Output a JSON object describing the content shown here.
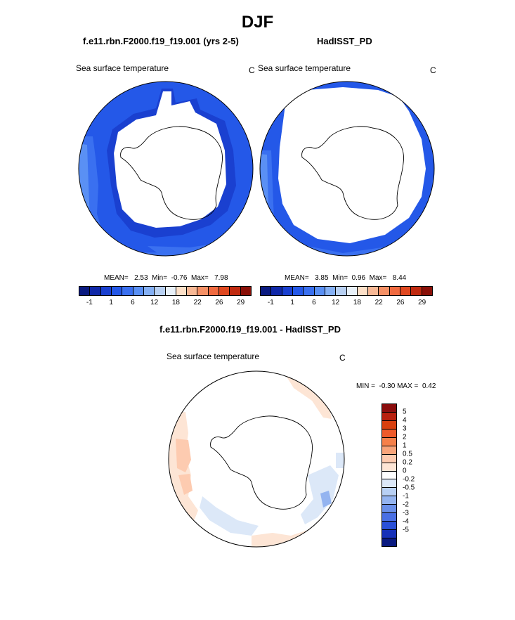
{
  "season": "DJF",
  "panel_left": {
    "case": "f.e11.rbn.F2000.f19_f19.001 (yrs 2-5)",
    "variable": "Sea surface temperature",
    "units": "C",
    "stats": {
      "mean_label": "MEAN=",
      "mean": "2.53",
      "min_label": "Min=",
      "min": "-0.76",
      "max_label": "Max=",
      "max": "7.98"
    }
  },
  "panel_right": {
    "case": "HadISST_PD",
    "variable": "Sea surface temperature",
    "units": "C",
    "stats": {
      "mean_label": "MEAN=",
      "mean": "3.85",
      "min_label": "Min=",
      "min": "0.96",
      "max_label": "Max=",
      "max": "8.44"
    }
  },
  "panel_diff": {
    "case": "f.e11.rbn.F2000.f19_f19.001 - HadISST_PD",
    "variable": "Sea surface temperature",
    "units": "C",
    "stats": {
      "min_label": "MIN =",
      "min": "-0.30",
      "max_label": "MAX =",
      "max": "0.42"
    }
  },
  "colorbar_sst": {
    "colors": [
      "#0a1a80",
      "#1028a8",
      "#1a40d0",
      "#2458e8",
      "#3a70f0",
      "#5a90f4",
      "#85b0f4",
      "#b8d0f2",
      "#e8f0f8",
      "#fde0c8",
      "#f8b895",
      "#f59065",
      "#f06a40",
      "#e04820",
      "#c02a10",
      "#8a1008"
    ],
    "tick_labels": [
      "-1",
      "1",
      "6",
      "12",
      "18",
      "22",
      "26",
      "29"
    ]
  },
  "colorbar_diff": {
    "colors": [
      "#8a0d0d",
      "#b8200e",
      "#d8400f",
      "#ee5a2a",
      "#f5804a",
      "#f8a47a",
      "#fdcbb0",
      "#fde5d5",
      "#ffffff",
      "#dce8f8",
      "#b8d0f4",
      "#94b4f0",
      "#6a90ea",
      "#4a70e4",
      "#2a50d8",
      "#1530b8",
      "#0a1a80"
    ],
    "tick_labels": [
      "5",
      "4",
      "3",
      "2",
      "1",
      "0.5",
      "0.2",
      "0",
      "-0.2",
      "-0.5",
      "-1",
      "-2",
      "-3",
      "-4",
      "-5"
    ]
  }
}
